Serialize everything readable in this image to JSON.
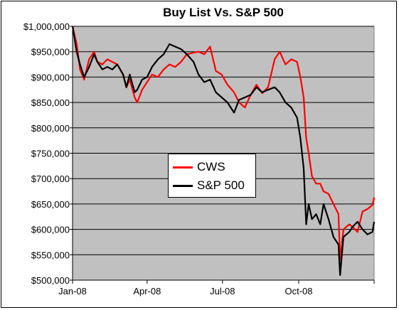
{
  "chart_data": {
    "type": "line",
    "title": "Buy List Vs. S&P 500",
    "xlabel": "",
    "ylabel": "",
    "ylim": [
      500000,
      1000000
    ],
    "xlim": [
      "2008-01-02",
      "2008-12-31"
    ],
    "grid": true,
    "y_ticks": [
      500000,
      550000,
      600000,
      650000,
      700000,
      750000,
      800000,
      850000,
      900000,
      950000,
      1000000
    ],
    "y_tick_labels": [
      "$500,000",
      "$550,000",
      "$600,000",
      "$650,000",
      "$700,000",
      "$750,000",
      "$800,000",
      "$850,000",
      "$900,000",
      "$950,000",
      "$1,000,000"
    ],
    "x_ticks": [
      "2008-01-02",
      "2008-04-01",
      "2008-07-01",
      "2008-10-01",
      "2008-12-31"
    ],
    "x_tick_labels": [
      "Jan-08",
      "Apr-08",
      "Jul-08",
      "Oct-08",
      ""
    ],
    "legend_position": "center",
    "colors": {
      "plot_background": "#c0c0c0",
      "gridline": "#000000"
    },
    "series": [
      {
        "name": "CWS",
        "color": "#ff0000",
        "x": [
          "2008-01-02",
          "2008-01-07",
          "2008-01-11",
          "2008-01-16",
          "2008-01-22",
          "2008-01-28",
          "2008-02-01",
          "2008-02-07",
          "2008-02-13",
          "2008-02-19",
          "2008-02-25",
          "2008-03-03",
          "2008-03-07",
          "2008-03-11",
          "2008-03-17",
          "2008-03-20",
          "2008-03-26",
          "2008-04-01",
          "2008-04-07",
          "2008-04-14",
          "2008-04-21",
          "2008-04-28",
          "2008-05-05",
          "2008-05-12",
          "2008-05-19",
          "2008-05-27",
          "2008-06-02",
          "2008-06-09",
          "2008-06-16",
          "2008-06-23",
          "2008-06-30",
          "2008-07-07",
          "2008-07-15",
          "2008-07-21",
          "2008-07-28",
          "2008-08-04",
          "2008-08-11",
          "2008-08-18",
          "2008-08-25",
          "2008-09-02",
          "2008-09-08",
          "2008-09-15",
          "2008-09-22",
          "2008-09-29",
          "2008-10-03",
          "2008-10-07",
          "2008-10-10",
          "2008-10-13",
          "2008-10-17",
          "2008-10-22",
          "2008-10-27",
          "2008-10-31",
          "2008-11-06",
          "2008-11-12",
          "2008-11-18",
          "2008-11-20",
          "2008-11-24",
          "2008-12-01",
          "2008-12-05",
          "2008-12-11",
          "2008-12-17",
          "2008-12-23",
          "2008-12-29",
          "2008-12-31"
        ],
        "values": [
          1000000,
          965000,
          915000,
          895000,
          935000,
          950000,
          930000,
          925000,
          935000,
          930000,
          925000,
          905000,
          880000,
          895000,
          860000,
          850000,
          875000,
          890000,
          905000,
          900000,
          915000,
          925000,
          920000,
          930000,
          945000,
          948000,
          950000,
          945000,
          960000,
          912000,
          905000,
          885000,
          870000,
          850000,
          840000,
          865000,
          885000,
          868000,
          880000,
          935000,
          950000,
          925000,
          935000,
          930000,
          900000,
          860000,
          780000,
          750000,
          705000,
          690000,
          690000,
          675000,
          670000,
          650000,
          630000,
          540000,
          600000,
          610000,
          605000,
          595000,
          635000,
          640000,
          648000,
          663000
        ]
      },
      {
        "name": "S&P 500",
        "color": "#000000",
        "x": [
          "2008-01-02",
          "2008-01-07",
          "2008-01-11",
          "2008-01-16",
          "2008-01-22",
          "2008-01-28",
          "2008-02-01",
          "2008-02-07",
          "2008-02-13",
          "2008-02-19",
          "2008-02-25",
          "2008-03-03",
          "2008-03-07",
          "2008-03-11",
          "2008-03-17",
          "2008-03-20",
          "2008-03-26",
          "2008-04-01",
          "2008-04-07",
          "2008-04-14",
          "2008-04-21",
          "2008-04-28",
          "2008-05-05",
          "2008-05-12",
          "2008-05-19",
          "2008-05-27",
          "2008-06-02",
          "2008-06-09",
          "2008-06-16",
          "2008-06-23",
          "2008-06-30",
          "2008-07-07",
          "2008-07-15",
          "2008-07-21",
          "2008-07-28",
          "2008-08-04",
          "2008-08-11",
          "2008-08-18",
          "2008-08-25",
          "2008-09-02",
          "2008-09-08",
          "2008-09-15",
          "2008-09-22",
          "2008-09-29",
          "2008-10-03",
          "2008-10-07",
          "2008-10-10",
          "2008-10-13",
          "2008-10-17",
          "2008-10-22",
          "2008-10-27",
          "2008-10-31",
          "2008-11-06",
          "2008-11-12",
          "2008-11-18",
          "2008-11-20",
          "2008-11-24",
          "2008-12-01",
          "2008-12-05",
          "2008-12-11",
          "2008-12-17",
          "2008-12-23",
          "2008-12-29",
          "2008-12-31"
        ],
        "values": [
          1000000,
          950000,
          925000,
          900000,
          920000,
          945000,
          930000,
          915000,
          920000,
          915000,
          925000,
          905000,
          880000,
          905000,
          870000,
          875000,
          895000,
          900000,
          920000,
          935000,
          945000,
          965000,
          960000,
          955000,
          945000,
          930000,
          905000,
          890000,
          895000,
          870000,
          860000,
          850000,
          830000,
          855000,
          860000,
          865000,
          880000,
          870000,
          875000,
          880000,
          870000,
          850000,
          840000,
          820000,
          780000,
          720000,
          610000,
          650000,
          620000,
          630000,
          610000,
          650000,
          620000,
          585000,
          570000,
          510000,
          585000,
          595000,
          605000,
          615000,
          600000,
          590000,
          595000,
          615000
        ]
      }
    ]
  }
}
